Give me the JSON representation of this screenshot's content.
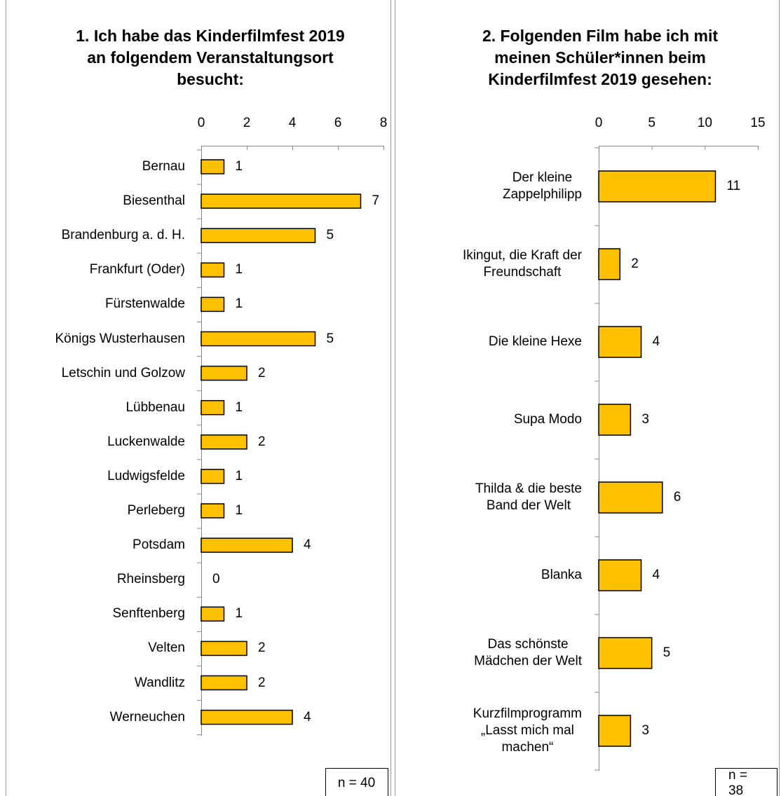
{
  "chart_data": [
    {
      "type": "bar",
      "orientation": "horizontal",
      "title": "1. Ich habe das Kinderfilmfest 2019\nan folgendem Veranstaltungsort\nbesucht:",
      "categories": [
        "Bernau",
        "Biesenthal",
        "Brandenburg a. d. H.",
        "Frankfurt (Oder)",
        "Fürstenwalde",
        "Königs Wusterhausen",
        "Letschin und Golzow",
        "Lübbenau",
        "Luckenwalde",
        "Ludwigsfelde",
        "Perleberg",
        "Potsdam",
        "Rheinsberg",
        "Senftenberg",
        "Velten",
        "Wandlitz",
        "Werneuchen"
      ],
      "values": [
        1,
        7,
        5,
        1,
        1,
        5,
        2,
        1,
        2,
        1,
        1,
        4,
        0,
        1,
        2,
        2,
        4
      ],
      "color": "#ffc000",
      "xlim": [
        0,
        8
      ],
      "xticks": [
        0,
        2,
        4,
        6,
        8
      ],
      "note": "n = 40"
    },
    {
      "type": "bar",
      "orientation": "horizontal",
      "title": "2. Folgenden Film habe ich mit\nmeinen Schüler*innen beim\nKinderfilmfest 2019 gesehen:",
      "categories": [
        "Der kleine\nZappelphilipp",
        "Ikingut, die Kraft der\nFreundschaft",
        "Die kleine Hexe",
        "Supa Modo",
        "Thilda & die beste\nBand der Welt",
        "Blanka",
        "Das schönste\nMädchen der Welt",
        "Kurzfilmprogramm\n„Lasst mich mal\nmachen“"
      ],
      "values": [
        11,
        2,
        4,
        3,
        6,
        4,
        5,
        3
      ],
      "color": "#ffc000",
      "xlim": [
        0,
        15
      ],
      "xticks": [
        0,
        5,
        10,
        15
      ],
      "note": "n = 38"
    }
  ]
}
